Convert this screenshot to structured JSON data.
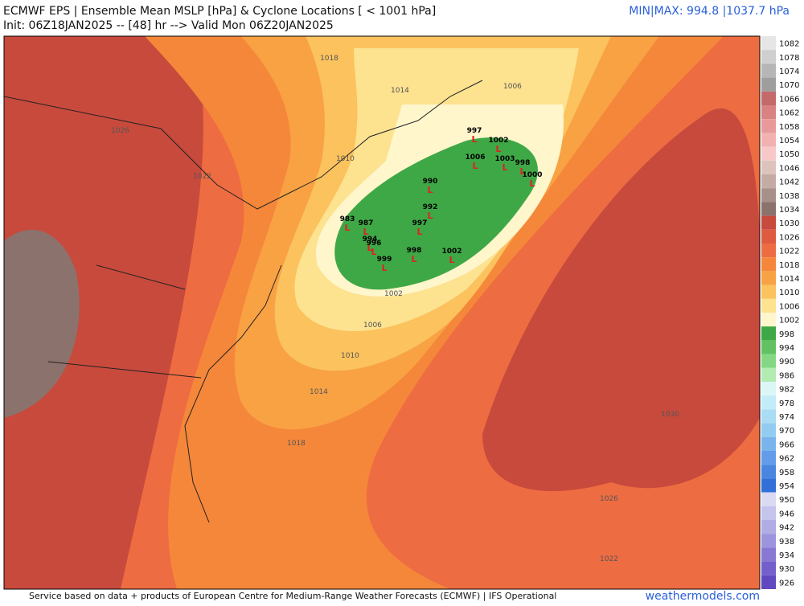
{
  "header": {
    "title": "ECMWF EPS | Ensemble Mean MSLP [hPa] & Cyclone Locations [ < 1001 hPa]",
    "init": "Init: 06Z18JAN2025 -- [48] hr --> Valid Mon 06Z20JAN2025",
    "minmax": "MIN|MAX: 994.8 |1037.7 hPa"
  },
  "colorbar": {
    "bins": [
      {
        "label": "1082",
        "color": "#e6e6e6"
      },
      {
        "label": "1078",
        "color": "#cfcfcf"
      },
      {
        "label": "1074",
        "color": "#b6b6b6"
      },
      {
        "label": "1070",
        "color": "#9e9e9e"
      },
      {
        "label": "1066",
        "color": "#c46a6a"
      },
      {
        "label": "1062",
        "color": "#d88282"
      },
      {
        "label": "1058",
        "color": "#e89a9a"
      },
      {
        "label": "1054",
        "color": "#f2b2b2"
      },
      {
        "label": "1050",
        "color": "#f8c8c8"
      },
      {
        "label": "1046",
        "color": "#dcc4bc"
      },
      {
        "label": "1042",
        "color": "#c4aca4"
      },
      {
        "label": "1038",
        "color": "#a8908a"
      },
      {
        "label": "1034",
        "color": "#8c726c"
      },
      {
        "label": "1030",
        "color": "#c84a3c"
      },
      {
        "label": "1026",
        "color": "#e05a40"
      },
      {
        "label": "1022",
        "color": "#ee6c42"
      },
      {
        "label": "1018",
        "color": "#f5873a"
      },
      {
        "label": "1014",
        "color": "#f8a244"
      },
      {
        "label": "1010",
        "color": "#fbc25e"
      },
      {
        "label": "1006",
        "color": "#fde290"
      },
      {
        "label": "1002",
        "color": "#fff6cc"
      },
      {
        "label": "998",
        "color": "#3fa846"
      },
      {
        "label": "994",
        "color": "#62c262"
      },
      {
        "label": "990",
        "color": "#84d884"
      },
      {
        "label": "986",
        "color": "#b2ecb2"
      },
      {
        "label": "982",
        "color": "#dcf6f6"
      },
      {
        "label": "978",
        "color": "#c2ecf8"
      },
      {
        "label": "974",
        "color": "#aadcf4"
      },
      {
        "label": "970",
        "color": "#92ccf0"
      },
      {
        "label": "966",
        "color": "#7ab4ec"
      },
      {
        "label": "962",
        "color": "#629cea"
      },
      {
        "label": "958",
        "color": "#4a86e0"
      },
      {
        "label": "954",
        "color": "#3270d8"
      },
      {
        "label": "950",
        "color": "#dadaf2"
      },
      {
        "label": "946",
        "color": "#c4c4ec"
      },
      {
        "label": "942",
        "color": "#b0ace4"
      },
      {
        "label": "938",
        "color": "#9c94dc"
      },
      {
        "label": "934",
        "color": "#8878d4"
      },
      {
        "label": "930",
        "color": "#7460cc"
      },
      {
        "label": "926",
        "color": "#6048c0"
      }
    ]
  },
  "map": {
    "contour_labels": [
      "1018",
      "1014",
      "1026",
      "1022",
      "1010",
      "1006",
      "1002",
      "1006",
      "1010",
      "1014",
      "1018",
      "1030",
      "1026",
      "1022"
    ],
    "lows": [
      "997",
      "1002",
      "1006",
      "1003",
      "998",
      "1000",
      "990",
      "992",
      "983",
      "987",
      "994",
      "996",
      "999",
      "997",
      "1002",
      "998"
    ],
    "low_symbol": "L"
  },
  "footer": {
    "credit": "Service based on data + products of European Centre for Medium-Range Weather Forecasts (ECMWF) | IFS Operational",
    "site": "weathermodels.com"
  }
}
